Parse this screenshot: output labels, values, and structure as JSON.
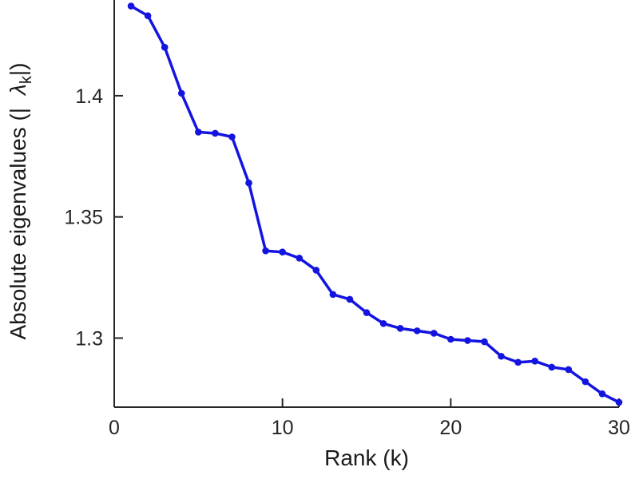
{
  "chart_data": {
    "type": "line",
    "title": "",
    "xlabel": "Rank (k)",
    "ylabel": {
      "prefix": "Absolute eigenvalues (|",
      "symbol": "λ",
      "subscript": "k",
      "suffix": "|)"
    },
    "x": [
      1,
      2,
      3,
      4,
      5,
      6,
      7,
      8,
      9,
      10,
      11,
      12,
      13,
      14,
      15,
      16,
      17,
      18,
      19,
      20,
      21,
      22,
      23,
      24,
      25,
      26,
      27,
      28,
      29,
      30
    ],
    "y": [
      1.437,
      1.433,
      1.42,
      1.401,
      1.385,
      1.3845,
      1.383,
      1.364,
      1.336,
      1.3355,
      1.333,
      1.328,
      1.318,
      1.316,
      1.3105,
      1.306,
      1.304,
      1.303,
      1.302,
      1.2995,
      1.299,
      1.2985,
      1.2925,
      1.29,
      1.2905,
      1.288,
      1.287,
      1.282,
      1.277,
      1.2735
    ],
    "xlim": [
      0,
      30
    ],
    "ylim": [
      1.2715,
      1.4395
    ],
    "xticks": [
      {
        "value": 0,
        "label": "0"
      },
      {
        "value": 10,
        "label": "10"
      },
      {
        "value": 20,
        "label": "20"
      },
      {
        "value": 30,
        "label": "30"
      }
    ],
    "yticks": [
      {
        "value": 1.3,
        "label": "1.3"
      },
      {
        "value": 1.35,
        "label": "1.35"
      },
      {
        "value": 1.4,
        "label": "1.4"
      }
    ],
    "grid": false,
    "line_color": "#1414e0",
    "marker": "circle",
    "axis_color": "#262626"
  }
}
